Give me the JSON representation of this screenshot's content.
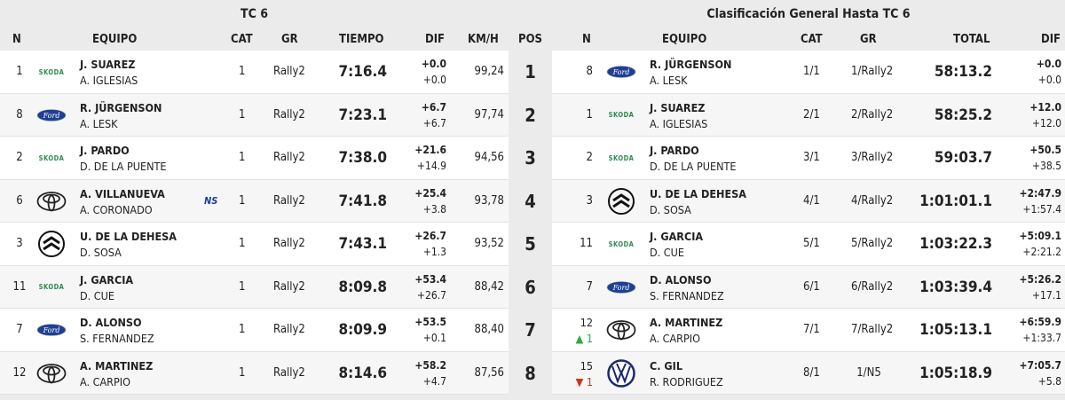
{
  "stage": {
    "title": "TC 6",
    "headers": {
      "n": "N",
      "equipo": "EQUIPO",
      "cat": "CAT",
      "gr": "GR",
      "tiempo": "TIEMPO",
      "dif": "DIF",
      "kmh": "KM/H"
    },
    "rows": [
      {
        "n": "1",
        "brand": "skoda",
        "driver": "J. SUAREZ",
        "codriver": "A. IGLESIAS",
        "badge": "",
        "cat": "1",
        "gr": "Rally2",
        "time": "7:16.4",
        "dif1": "+0.0",
        "dif2": "+0.0",
        "kmh": "99,24"
      },
      {
        "n": "8",
        "brand": "ford",
        "driver": "R. JÜRGENSON",
        "codriver": "A. LESK",
        "badge": "",
        "cat": "1",
        "gr": "Rally2",
        "time": "7:23.1",
        "dif1": "+6.7",
        "dif2": "+6.7",
        "kmh": "97,74"
      },
      {
        "n": "2",
        "brand": "skoda",
        "driver": "J. PARDO",
        "codriver": "D. DE LA PUENTE",
        "badge": "",
        "cat": "1",
        "gr": "Rally2",
        "time": "7:38.0",
        "dif1": "+21.6",
        "dif2": "+14.9",
        "kmh": "94,56"
      },
      {
        "n": "6",
        "brand": "toyota",
        "driver": "A. VILLANUEVA",
        "codriver": "A. CORONADO",
        "badge": "NS",
        "cat": "1",
        "gr": "Rally2",
        "time": "7:41.8",
        "dif1": "+25.4",
        "dif2": "+3.8",
        "kmh": "93,78"
      },
      {
        "n": "3",
        "brand": "citroen",
        "driver": "U. DE LA DEHESA",
        "codriver": "D. SOSA",
        "badge": "",
        "cat": "1",
        "gr": "Rally2",
        "time": "7:43.1",
        "dif1": "+26.7",
        "dif2": "+1.3",
        "kmh": "93,52"
      },
      {
        "n": "11",
        "brand": "skoda",
        "driver": "J. GARCIA",
        "codriver": "D. CUE",
        "badge": "",
        "cat": "1",
        "gr": "Rally2",
        "time": "8:09.8",
        "dif1": "+53.4",
        "dif2": "+26.7",
        "kmh": "88,42"
      },
      {
        "n": "7",
        "brand": "ford",
        "driver": "D. ALONSO",
        "codriver": "S. FERNANDEZ",
        "badge": "",
        "cat": "1",
        "gr": "Rally2",
        "time": "8:09.9",
        "dif1": "+53.5",
        "dif2": "+0.1",
        "kmh": "88,40"
      },
      {
        "n": "12",
        "brand": "toyota",
        "driver": "A. MARTINEZ",
        "codriver": "A. CARPIO",
        "badge": "",
        "cat": "1",
        "gr": "Rally2",
        "time": "8:14.6",
        "dif1": "+58.2",
        "dif2": "+4.7",
        "kmh": "87,56"
      }
    ]
  },
  "pos": {
    "header": "POS",
    "values": [
      "1",
      "2",
      "3",
      "4",
      "5",
      "6",
      "7",
      "8"
    ]
  },
  "overall": {
    "title": "Clasificación General Hasta TC 6",
    "headers": {
      "n": "N",
      "equipo": "EQUIPO",
      "cat": "CAT",
      "gr": "GR",
      "total": "TOTAL",
      "dif": "DIF"
    },
    "rows": [
      {
        "n": "8",
        "change": "",
        "dir": "",
        "brand": "ford",
        "driver": "R. JÜRGENSON",
        "codriver": "A. LESK",
        "cat": "1/1",
        "gr": "1/Rally2",
        "total": "58:13.2",
        "dif1": "+0.0",
        "dif2": "+0.0"
      },
      {
        "n": "1",
        "change": "",
        "dir": "",
        "brand": "skoda",
        "driver": "J. SUAREZ",
        "codriver": "A. IGLESIAS",
        "cat": "2/1",
        "gr": "2/Rally2",
        "total": "58:25.2",
        "dif1": "+12.0",
        "dif2": "+12.0"
      },
      {
        "n": "2",
        "change": "",
        "dir": "",
        "brand": "skoda",
        "driver": "J. PARDO",
        "codriver": "D. DE LA PUENTE",
        "cat": "3/1",
        "gr": "3/Rally2",
        "total": "59:03.7",
        "dif1": "+50.5",
        "dif2": "+38.5"
      },
      {
        "n": "3",
        "change": "",
        "dir": "",
        "brand": "citroen",
        "driver": "U. DE LA DEHESA",
        "codriver": "D. SOSA",
        "cat": "4/1",
        "gr": "4/Rally2",
        "total": "1:01:01.1",
        "dif1": "+2:47.9",
        "dif2": "+1:57.4"
      },
      {
        "n": "11",
        "change": "",
        "dir": "",
        "brand": "skoda",
        "driver": "J. GARCIA",
        "codriver": "D. CUE",
        "cat": "5/1",
        "gr": "5/Rally2",
        "total": "1:03:22.3",
        "dif1": "+5:09.1",
        "dif2": "+2:21.2"
      },
      {
        "n": "7",
        "change": "",
        "dir": "",
        "brand": "ford",
        "driver": "D. ALONSO",
        "codriver": "S. FERNANDEZ",
        "cat": "6/1",
        "gr": "6/Rally2",
        "total": "1:03:39.4",
        "dif1": "+5:26.2",
        "dif2": "+17.1"
      },
      {
        "n": "12",
        "change": "1",
        "dir": "up",
        "brand": "toyota",
        "driver": "A. MARTINEZ",
        "codriver": "A. CARPIO",
        "cat": "7/1",
        "gr": "7/Rally2",
        "total": "1:05:13.1",
        "dif1": "+6:59.9",
        "dif2": "+1:33.7"
      },
      {
        "n": "15",
        "change": "1",
        "dir": "down",
        "brand": "vw",
        "driver": "C. GIL",
        "codriver": "R. RODRIGUEZ",
        "cat": "8/1",
        "gr": "1/N5",
        "total": "1:05:18.9",
        "dif1": "+7:05.7",
        "dif2": "+5.8"
      }
    ]
  },
  "colors": {
    "skoda": "#2f8a4f",
    "ford": "#1f3f94",
    "up": "#2eaa3f",
    "down": "#c8381c",
    "ns": "#1d3f9e"
  }
}
